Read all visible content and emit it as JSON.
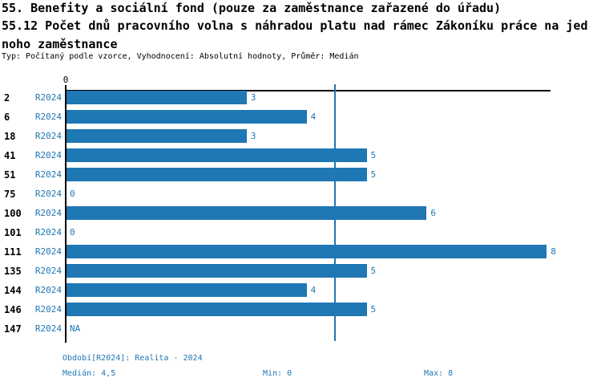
{
  "title": {
    "line1": "55. Benefity a sociální fond (pouze za zaměstnance zařazené do úřadu)",
    "line2": "55.12 Počet dnů pracovního volna s náhradou platu nad rámec Zákoníku práce na jed",
    "line3": "noho zaměstnance",
    "meta": "Typ: Počítaný podle vzorce, Vyhodnocení: Absolutní hodnoty, Průměr: Medián"
  },
  "chart_data": {
    "type": "bar",
    "orientation": "horizontal",
    "title": "55.12 Počet dnů pracovního volna s náhradou platu nad rámec Zákoníku práce na jednoho zaměstnance",
    "categories": [
      "2",
      "6",
      "18",
      "41",
      "51",
      "75",
      "100",
      "101",
      "111",
      "135",
      "144",
      "146",
      "147"
    ],
    "series": [
      {
        "name": "R2024",
        "values": [
          3,
          4,
          3,
          5,
          5,
          0,
          6,
          0,
          8,
          5,
          4,
          5,
          null
        ],
        "value_labels": [
          "3",
          "4",
          "3",
          "5",
          "5",
          "0",
          "6",
          "0",
          "8",
          "5",
          "4",
          "5",
          "NA"
        ]
      }
    ],
    "xlim": [
      0,
      8
    ],
    "x_tick_labels": [
      "0"
    ],
    "median_line_value": 4.5,
    "grid": false,
    "legend_position": "bottom",
    "bar_color": "#1f77b4",
    "accent_text_color": "#1f77b4",
    "axis_color": "#000000"
  },
  "footer": {
    "period": "Období[R2024]: Realita - 2024",
    "median": "Medián: 4,5",
    "min": "Min: 0",
    "max": "Max: 8"
  }
}
